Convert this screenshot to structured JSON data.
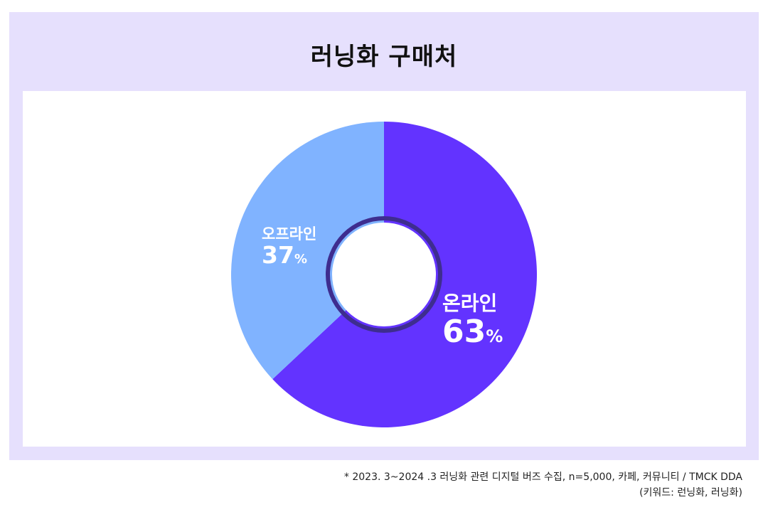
{
  "colors": {
    "frame": "#e6e0fd",
    "online": "#6333ff",
    "offline": "#80b3ff",
    "inner_ring": "#3e2d8f"
  },
  "chart_data": {
    "type": "pie",
    "title": "러닝화 구매처",
    "series": [
      {
        "name": "온라인",
        "value": 63,
        "label": "63",
        "unit": "%"
      },
      {
        "name": "오프라인",
        "value": 37,
        "label": "37",
        "unit": "%"
      }
    ]
  },
  "footnote": {
    "line1": "* 2023. 3~2024 .3 러닝화 관련 디지털 버즈 수집, n=5,000, 카페, 커뮤니티 / TMCK DDA",
    "line2": "(키워드: 런닝화, 러닝화)"
  }
}
